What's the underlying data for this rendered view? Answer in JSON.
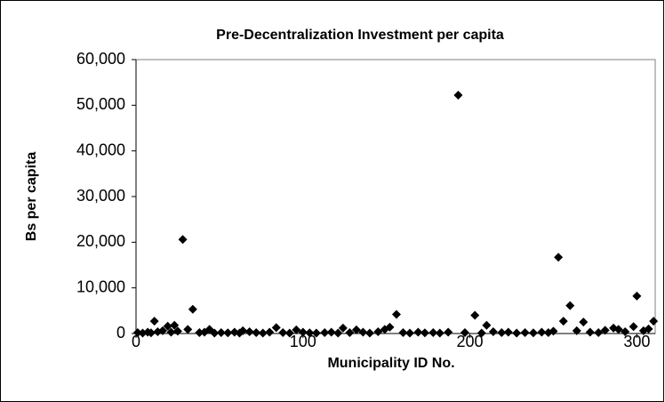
{
  "chart_data": {
    "type": "scatter",
    "title": "Pre-Decentralization Investment per capita",
    "x_label": "Municipality ID No.",
    "y_label": "Bs per capita",
    "color": "#000000",
    "xlim": [
      0,
      311
    ],
    "ylim": [
      0,
      60000
    ],
    "xticks": [
      0,
      100,
      200,
      300
    ],
    "yticks": [
      0,
      {
        "value": 10000,
        "label": "10,000"
      },
      {
        "value": 20000,
        "label": "20,000"
      },
      {
        "value": 30000,
        "label": "30,000"
      },
      {
        "value": 40000,
        "label": "40,000"
      },
      {
        "value": 50000,
        "label": "50,000"
      },
      {
        "value": 60000,
        "label": "60,000"
      }
    ],
    "x": [
      28,
      34,
      11,
      19,
      23,
      193,
      156,
      203,
      210,
      253,
      256,
      260,
      268,
      300,
      310,
      298,
      286,
      84,
      124,
      152,
      44,
      64,
      96,
      1,
      4,
      7,
      9,
      13,
      16,
      21,
      25,
      31,
      38,
      41,
      47,
      51,
      55,
      59,
      62,
      68,
      72,
      76,
      80,
      88,
      92,
      100,
      104,
      108,
      113,
      117,
      121,
      128,
      132,
      136,
      140,
      145,
      149,
      160,
      164,
      169,
      173,
      178,
      182,
      187,
      197,
      207,
      214,
      219,
      223,
      228,
      233,
      238,
      243,
      247,
      250,
      264,
      272,
      277,
      281,
      289,
      293,
      304,
      307
    ],
    "values": [
      20600,
      5300,
      2700,
      1600,
      1800,
      52200,
      4200,
      4000,
      1800,
      16700,
      2700,
      6100,
      2500,
      8200,
      2700,
      1500,
      1200,
      1300,
      1200,
      1400,
      900,
      600,
      800,
      200,
      100,
      300,
      150,
      400,
      600,
      300,
      500,
      900,
      200,
      300,
      100,
      200,
      150,
      300,
      100,
      400,
      200,
      100,
      300,
      200,
      100,
      300,
      150,
      100,
      200,
      300,
      100,
      200,
      800,
      300,
      100,
      400,
      900,
      200,
      100,
      300,
      150,
      200,
      100,
      300,
      200,
      100,
      400,
      200,
      300,
      100,
      200,
      150,
      300,
      200,
      500,
      600,
      300,
      200,
      700,
      900,
      400,
      600,
      1000
    ]
  }
}
